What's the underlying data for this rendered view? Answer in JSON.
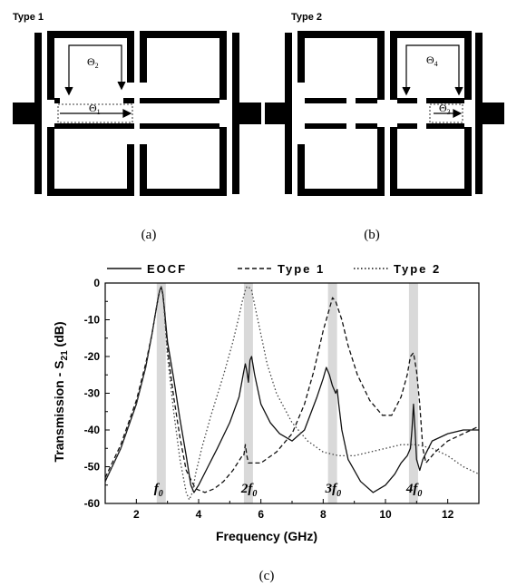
{
  "panel_a": {
    "type_label": "Type 1",
    "theta_top": "Θ",
    "theta_top_sub": "2",
    "theta_gap": "Θ",
    "theta_gap_sub": "1",
    "caption": "(a)"
  },
  "panel_b": {
    "type_label": "Type 2",
    "theta_top": "Θ",
    "theta_top_sub": "4",
    "theta_gap": "Θ",
    "theta_gap_sub": "3",
    "caption": "(b)"
  },
  "panel_c": {
    "caption": "(c)"
  },
  "chart_data": {
    "type": "line",
    "xlabel": "Frequency (GHz)",
    "ylabel_main": "Transmission - S",
    "ylabel_sub": "21",
    "ylabel_unit": " (dB)",
    "xlim": [
      1,
      13
    ],
    "ylim": [
      -60,
      0
    ],
    "x_ticks": [
      2,
      4,
      6,
      8,
      10,
      12
    ],
    "y_ticks": [
      0,
      -10,
      -20,
      -30,
      -40,
      -50,
      -60
    ],
    "grid": false,
    "legend_position": "top",
    "bands": [
      {
        "center": 2.8,
        "label": "f",
        "sub": "0"
      },
      {
        "center": 5.6,
        "label": "2f",
        "sub": "0"
      },
      {
        "center": 8.3,
        "label": "3f",
        "sub": "0"
      },
      {
        "center": 10.9,
        "label": "4f",
        "sub": "0"
      }
    ],
    "series": [
      {
        "name": "EOCF",
        "dash": "solid",
        "x": [
          1.0,
          1.5,
          2.0,
          2.3,
          2.5,
          2.6,
          2.7,
          2.75,
          2.8,
          2.85,
          2.9,
          3.0,
          3.2,
          3.4,
          3.6,
          3.75,
          3.85,
          4.0,
          4.3,
          4.6,
          5.0,
          5.3,
          5.45,
          5.5,
          5.55,
          5.6,
          5.65,
          5.7,
          5.8,
          6.0,
          6.3,
          6.6,
          7.0,
          7.4,
          7.8,
          8.0,
          8.1,
          8.2,
          8.3,
          8.4,
          8.45,
          8.5,
          8.6,
          8.8,
          9.2,
          9.6,
          10.0,
          10.3,
          10.5,
          10.7,
          10.8,
          10.85,
          10.9,
          10.95,
          11.0,
          11.1,
          11.2,
          11.5,
          12.0,
          12.5,
          13.0
        ],
        "y": [
          -54,
          -45,
          -33,
          -23,
          -14,
          -9,
          -4,
          -2,
          -1,
          -3,
          -7,
          -16,
          -26,
          -37,
          -47,
          -55,
          -57,
          -55,
          -50,
          -45,
          -38,
          -31,
          -24,
          -22,
          -24,
          -27,
          -21,
          -20,
          -25,
          -33,
          -38,
          -41,
          -43,
          -40,
          -31,
          -26,
          -23,
          -25,
          -28,
          -30,
          -29,
          -33,
          -40,
          -48,
          -54,
          -57,
          -55,
          -52,
          -49,
          -47,
          -45,
          -40,
          -33,
          -40,
          -48,
          -51,
          -48,
          -43,
          -41,
          -40,
          -40
        ]
      },
      {
        "name": "Type 1",
        "dash": "dashed",
        "x": [
          1.0,
          1.5,
          2.0,
          2.3,
          2.5,
          2.6,
          2.7,
          2.75,
          2.8,
          2.85,
          2.9,
          3.0,
          3.2,
          3.4,
          3.6,
          3.9,
          4.2,
          4.5,
          4.8,
          5.1,
          5.4,
          5.45,
          5.5,
          5.55,
          5.6,
          6.0,
          6.5,
          7.0,
          7.4,
          7.7,
          8.0,
          8.2,
          8.3,
          8.4,
          8.6,
          8.8,
          9.1,
          9.5,
          9.9,
          10.2,
          10.5,
          10.7,
          10.8,
          10.9,
          11.0,
          11.1,
          11.2,
          11.3,
          11.6,
          12.0,
          12.5,
          13.0
        ],
        "y": [
          -53,
          -44,
          -32,
          -22,
          -14,
          -9,
          -4,
          -2,
          -1,
          -3,
          -7,
          -18,
          -31,
          -42,
          -51,
          -56,
          -57,
          -56,
          -54,
          -51,
          -47,
          -47,
          -44,
          -47,
          -49,
          -49,
          -46,
          -41,
          -33,
          -24,
          -13,
          -7,
          -4,
          -5,
          -10,
          -17,
          -25,
          -32,
          -36,
          -36,
          -31,
          -25,
          -20,
          -19,
          -24,
          -33,
          -45,
          -49,
          -46,
          -43,
          -41,
          -39
        ]
      },
      {
        "name": "Type 2",
        "dash": "dotted",
        "x": [
          1.0,
          1.5,
          2.0,
          2.3,
          2.5,
          2.6,
          2.7,
          2.75,
          2.8,
          2.85,
          2.9,
          3.0,
          3.2,
          3.4,
          3.6,
          3.7,
          3.8,
          3.9,
          4.1,
          4.4,
          4.8,
          5.1,
          5.3,
          5.4,
          5.5,
          5.55,
          5.6,
          5.7,
          5.8,
          6.0,
          6.2,
          6.5,
          7.0,
          7.5,
          8.0,
          8.5,
          9.0,
          9.5,
          10.0,
          10.5,
          11.0,
          11.5,
          12.0,
          12.5,
          13.0
        ],
        "y": [
          -54,
          -45,
          -33,
          -23,
          -14,
          -9,
          -4,
          -2,
          -1,
          -3,
          -8,
          -20,
          -35,
          -48,
          -57,
          -59,
          -57,
          -52,
          -45,
          -36,
          -25,
          -16,
          -9,
          -5,
          -2,
          -1,
          -1,
          -2,
          -6,
          -14,
          -22,
          -30,
          -38,
          -43,
          -46,
          -47,
          -47,
          -46,
          -45,
          -44,
          -44,
          -45,
          -47,
          -50,
          -52
        ]
      }
    ]
  }
}
